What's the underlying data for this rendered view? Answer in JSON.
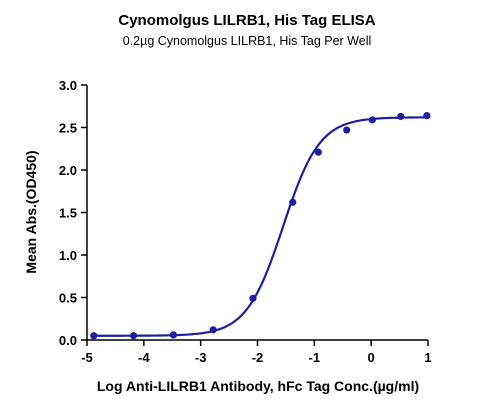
{
  "chart_data": {
    "type": "scatter",
    "title": "Cynomolgus LILRB1, His Tag ELISA",
    "subtitle": "0.2µg Cynomolgus LILRB1, His Tag Per Well",
    "xlabel": "Log Anti-LILRB1 Antibody, hFc Tag Conc.(µg/ml)",
    "ylabel": "Mean Abs.(OD450)",
    "xlim": [
      -5,
      1
    ],
    "ylim": [
      0,
      3.0
    ],
    "xticks": [
      -5,
      -4,
      -3,
      -2,
      -1,
      0,
      1
    ],
    "xtick_labels": [
      "-5",
      "-4",
      "-3",
      "-2",
      "-1",
      "0",
      "1"
    ],
    "yticks": [
      0,
      0.5,
      1.0,
      1.5,
      2.0,
      2.5,
      3.0
    ],
    "ytick_labels": [
      "0.0",
      "0.5",
      "1.0",
      "1.5",
      "2.0",
      "2.5",
      "3.0"
    ],
    "grid": false,
    "legend": "none",
    "color": "#1f1f9e",
    "series": [
      {
        "x": [
          -4.88,
          -4.18,
          -3.48,
          -2.78,
          -2.08,
          -1.38,
          -0.93,
          -0.43,
          0.02,
          0.52,
          0.98
        ],
        "y": [
          0.05,
          0.05,
          0.06,
          0.12,
          0.49,
          1.62,
          2.21,
          2.47,
          2.59,
          2.63,
          2.64
        ]
      }
    ],
    "fit": {
      "model": "4PL",
      "bottom": 0.05,
      "top": 2.62,
      "log_ec50": -1.55,
      "hill_slope": 1.35,
      "x_range": [
        -4.88,
        1.0
      ]
    }
  }
}
